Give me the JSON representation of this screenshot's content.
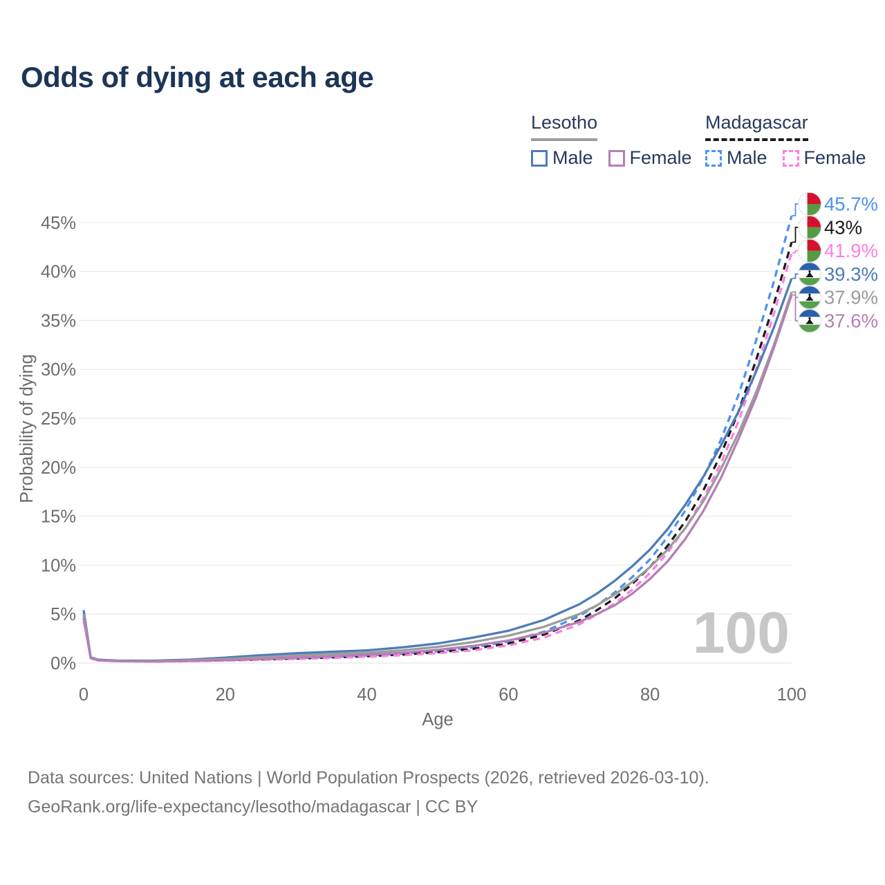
{
  "title": "Odds of dying at each age",
  "legend": {
    "groups": [
      {
        "id": "lesotho",
        "label": "Lesotho",
        "line_style": "solid",
        "line_color": "#9c9c9c",
        "items": [
          {
            "id": "lesotho-male",
            "label": "Male",
            "color": "#4d7cb8",
            "dashed": false
          },
          {
            "id": "lesotho-female",
            "label": "Female",
            "color": "#b57fb4",
            "dashed": false
          }
        ]
      },
      {
        "id": "madagascar",
        "label": "Madagascar",
        "line_style": "dashed",
        "line_color": "#1b1b1b",
        "items": [
          {
            "id": "madagascar-male",
            "label": "Male",
            "color": "#4e92f0",
            "dashed": true
          },
          {
            "id": "madagascar-female",
            "label": "Female",
            "color": "#fb80e4",
            "dashed": true
          }
        ]
      }
    ]
  },
  "chart_data": {
    "type": "line",
    "title": "Odds of dying at each age",
    "xlabel": "Age",
    "ylabel": "Probability of dying",
    "units": "percent",
    "xlim": [
      0,
      100
    ],
    "ylim_percent": [
      0,
      47.5
    ],
    "x_ticks": [
      0,
      20,
      40,
      60,
      80,
      100
    ],
    "y_ticks_percent": [
      0,
      5,
      10,
      15,
      20,
      25,
      30,
      35,
      40,
      45
    ],
    "grid": "horizontal",
    "legend_position": "top-right",
    "age_watermark": "100",
    "x": [
      0,
      1,
      2,
      5,
      10,
      15,
      20,
      25,
      30,
      35,
      40,
      45,
      50,
      55,
      60,
      65,
      70,
      72.5,
      75,
      77.5,
      80,
      82.5,
      85,
      87.5,
      90,
      92.5,
      95,
      97.5,
      100
    ],
    "series": [
      {
        "name": "Madagascar Male",
        "country": "Madagascar",
        "sex": "Male",
        "color": "#4e92f0",
        "dash": true,
        "flag": "madagascar",
        "end_label": "45.7%",
        "values": [
          4.9,
          0.55,
          0.3,
          0.22,
          0.18,
          0.23,
          0.3,
          0.4,
          0.5,
          0.62,
          0.77,
          0.95,
          1.2,
          1.6,
          2.2,
          3.2,
          4.8,
          5.9,
          7.2,
          8.8,
          10.6,
          12.9,
          15.6,
          18.9,
          22.8,
          27.4,
          33.0,
          39.0,
          45.7
        ]
      },
      {
        "name": "Madagascar Both sexes",
        "country": "Madagascar",
        "sex": "Both sexes",
        "color": "#1b1b1b",
        "dash": true,
        "flag": "madagascar",
        "end_label": "43%",
        "values": [
          4.6,
          0.52,
          0.28,
          0.2,
          0.17,
          0.21,
          0.28,
          0.37,
          0.46,
          0.57,
          0.7,
          0.87,
          1.1,
          1.45,
          2.0,
          2.9,
          4.35,
          5.4,
          6.6,
          8.1,
          9.8,
          12.0,
          14.5,
          17.6,
          21.3,
          25.7,
          31.0,
          36.7,
          43.0
        ]
      },
      {
        "name": "Madagascar Female",
        "country": "Madagascar",
        "sex": "Female",
        "color": "#fb80e4",
        "dash": true,
        "flag": "madagascar",
        "end_label": "41.9%",
        "values": [
          4.3,
          0.5,
          0.26,
          0.19,
          0.16,
          0.19,
          0.25,
          0.33,
          0.42,
          0.52,
          0.64,
          0.8,
          1.0,
          1.3,
          1.8,
          2.6,
          3.95,
          4.95,
          6.1,
          7.5,
          9.2,
          11.3,
          13.8,
          16.8,
          20.4,
          24.7,
          30.0,
          35.7,
          41.9
        ]
      },
      {
        "name": "Lesotho Male",
        "country": "Lesotho",
        "sex": "Male",
        "color": "#4d7cb8",
        "dash": false,
        "flag": "lesotho",
        "end_label": "39.3%",
        "values": [
          5.4,
          0.6,
          0.35,
          0.25,
          0.25,
          0.35,
          0.55,
          0.8,
          1.0,
          1.15,
          1.3,
          1.6,
          2.0,
          2.6,
          3.3,
          4.4,
          6.0,
          7.1,
          8.4,
          9.9,
          11.6,
          13.7,
          16.2,
          19.0,
          22.2,
          25.7,
          29.8,
          34.3,
          39.3
        ]
      },
      {
        "name": "Lesotho Both sexes",
        "country": "Lesotho",
        "sex": "Both sexes",
        "color": "#9c9c9c",
        "dash": false,
        "flag": "lesotho",
        "end_label": "37.9%",
        "values": [
          5.0,
          0.55,
          0.3,
          0.22,
          0.2,
          0.28,
          0.42,
          0.6,
          0.78,
          0.93,
          1.05,
          1.3,
          1.65,
          2.15,
          2.8,
          3.7,
          5.0,
          5.9,
          7.0,
          8.3,
          9.8,
          11.6,
          13.8,
          16.5,
          19.8,
          23.5,
          27.7,
          32.5,
          37.9
        ]
      },
      {
        "name": "Lesotho Female",
        "country": "Lesotho",
        "sex": "Female",
        "color": "#b57fb4",
        "dash": false,
        "flag": "lesotho",
        "end_label": "37.6%",
        "values": [
          4.6,
          0.5,
          0.28,
          0.2,
          0.17,
          0.22,
          0.3,
          0.42,
          0.55,
          0.7,
          0.85,
          1.05,
          1.35,
          1.75,
          2.3,
          3.1,
          4.2,
          5.0,
          5.9,
          7.1,
          8.6,
          10.4,
          12.7,
          15.5,
          18.9,
          22.9,
          27.2,
          32.2,
          37.6
        ]
      }
    ],
    "flag_colors": {
      "madagascar": {
        "white": "#ffffff",
        "red": "#d6102f",
        "green": "#569a44"
      },
      "lesotho": {
        "blue": "#2a5fad",
        "white": "#ffffff",
        "green": "#57a04c",
        "hat": "#141414"
      }
    },
    "style": {
      "grid_color": "#ececec",
      "tick_color": "#6c6c6c",
      "axis_title_color": "#6c6c6c",
      "watermark_color": "#c7c7c7"
    }
  },
  "footer": {
    "line1": "Data sources: United Nations | World Population Prospects (2026, retrieved 2026-03-10).",
    "line2": "GeoRank.org/life-expectancy/lesotho/madagascar | CC BY"
  }
}
